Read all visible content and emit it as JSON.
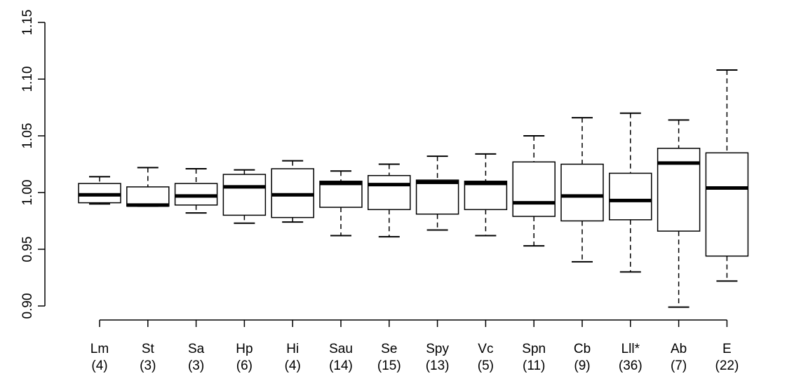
{
  "chart_data": {
    "type": "boxplot",
    "title": "",
    "xlabel": "",
    "ylabel": "",
    "ylim": [
      0.9,
      1.15
    ],
    "yticks": [
      "0.90",
      "0.95",
      "1.00",
      "1.05",
      "1.10",
      "1.15"
    ],
    "grid": false,
    "categories": [
      {
        "label": "Lm",
        "n": "(4)",
        "min": 0.99,
        "q1": 0.991,
        "median": 0.998,
        "q3": 1.008,
        "max": 1.014
      },
      {
        "label": "St",
        "n": "(3)",
        "min": 0.988,
        "q1": 0.988,
        "median": 0.989,
        "q3": 1.005,
        "max": 1.022
      },
      {
        "label": "Sa",
        "n": "(3)",
        "min": 0.982,
        "q1": 0.989,
        "median": 0.997,
        "q3": 1.008,
        "max": 1.021
      },
      {
        "label": "Hp",
        "n": "(6)",
        "min": 0.973,
        "q1": 0.98,
        "median": 1.005,
        "q3": 1.016,
        "max": 1.02
      },
      {
        "label": "Hi",
        "n": "(4)",
        "min": 0.974,
        "q1": 0.978,
        "median": 0.998,
        "q3": 1.021,
        "max": 1.028
      },
      {
        "label": "Sau",
        "n": "(14)",
        "min": 0.962,
        "q1": 0.987,
        "median": 1.008,
        "q3": 1.01,
        "max": 1.019
      },
      {
        "label": "Se",
        "n": "(15)",
        "min": 0.961,
        "q1": 0.985,
        "median": 1.007,
        "q3": 1.015,
        "max": 1.025
      },
      {
        "label": "Spy",
        "n": "(13)",
        "min": 0.967,
        "q1": 0.981,
        "median": 1.009,
        "q3": 1.011,
        "max": 1.032
      },
      {
        "label": "Vc",
        "n": "(5)",
        "min": 0.962,
        "q1": 0.985,
        "median": 1.008,
        "q3": 1.01,
        "max": 1.034
      },
      {
        "label": "Spn",
        "n": "(11)",
        "min": 0.953,
        "q1": 0.979,
        "median": 0.991,
        "q3": 1.027,
        "max": 1.05
      },
      {
        "label": "Cb",
        "n": "(9)",
        "min": 0.939,
        "q1": 0.975,
        "median": 0.997,
        "q3": 1.025,
        "max": 1.066
      },
      {
        "label": "Lll*",
        "n": "(36)",
        "min": 0.93,
        "q1": 0.976,
        "median": 0.993,
        "q3": 1.017,
        "max": 1.07
      },
      {
        "label": "Ab",
        "n": "(7)",
        "min": 0.899,
        "q1": 0.966,
        "median": 1.026,
        "q3": 1.039,
        "max": 1.064
      },
      {
        "label": "E",
        "n": "(22)",
        "min": 0.922,
        "q1": 0.944,
        "median": 1.004,
        "q3": 1.035,
        "max": 1.108
      }
    ]
  }
}
